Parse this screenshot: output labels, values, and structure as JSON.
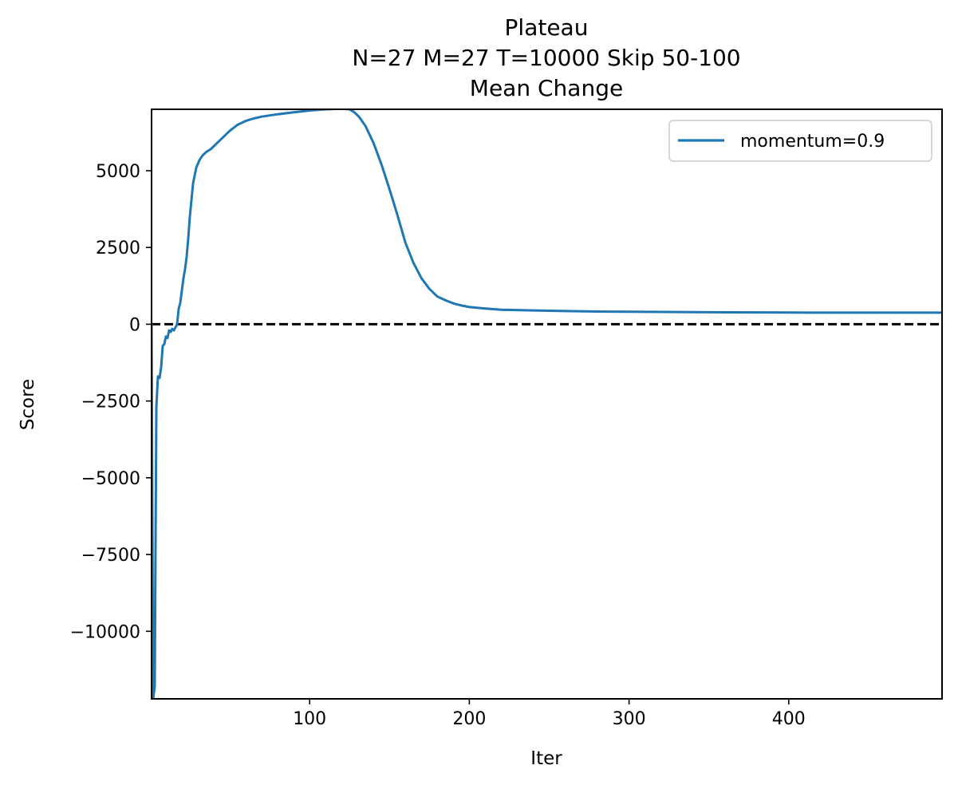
{
  "chart_data": {
    "type": "line",
    "title_lines": [
      "Plateau",
      "N=27 M=27 T=10000 Skip 50-100",
      "Mean Change"
    ],
    "xlabel": "Iter",
    "ylabel": "Score",
    "xlim": [
      1,
      496
    ],
    "ylim": [
      -12200,
      7000
    ],
    "x_ticks": [
      100,
      200,
      300,
      400
    ],
    "y_ticks": [
      -10000,
      -7500,
      -5000,
      -2500,
      0,
      2500,
      5000
    ],
    "reference_line": {
      "y": 0,
      "style": "dashed",
      "color": "#000000"
    },
    "legend": {
      "location": "upper right"
    },
    "grid": false,
    "series": [
      {
        "name": "momentum=0.9",
        "color": "#1f77b4",
        "x": [
          1,
          2,
          3,
          4,
          5,
          6,
          7,
          8,
          9,
          10,
          11,
          12,
          13,
          14,
          15,
          16,
          17,
          18,
          19,
          20,
          21,
          22,
          23,
          24,
          25,
          27,
          29,
          31,
          33,
          35,
          38,
          41,
          45,
          50,
          55,
          60,
          65,
          70,
          80,
          90,
          100,
          110,
          120,
          125,
          128,
          131,
          135,
          140,
          145,
          150,
          155,
          160,
          165,
          170,
          175,
          180,
          185,
          190,
          195,
          200,
          210,
          220,
          240,
          260,
          280,
          300,
          350,
          400,
          450,
          496
        ],
        "values": [
          -10,
          -12200,
          -11800,
          -2700,
          -1700,
          -1750,
          -1400,
          -700,
          -650,
          -400,
          -450,
          -200,
          -250,
          -150,
          -200,
          -100,
          0,
          500,
          700,
          1100,
          1500,
          1800,
          2200,
          2800,
          3500,
          4600,
          5100,
          5350,
          5500,
          5600,
          5700,
          5850,
          6050,
          6300,
          6500,
          6620,
          6700,
          6760,
          6840,
          6900,
          6960,
          7000,
          7020,
          7000,
          6900,
          6750,
          6450,
          5900,
          5200,
          4400,
          3550,
          2650,
          2000,
          1500,
          1150,
          900,
          780,
          680,
          610,
          560,
          510,
          470,
          450,
          430,
          415,
          405,
          390,
          380,
          378,
          378
        ]
      }
    ]
  }
}
